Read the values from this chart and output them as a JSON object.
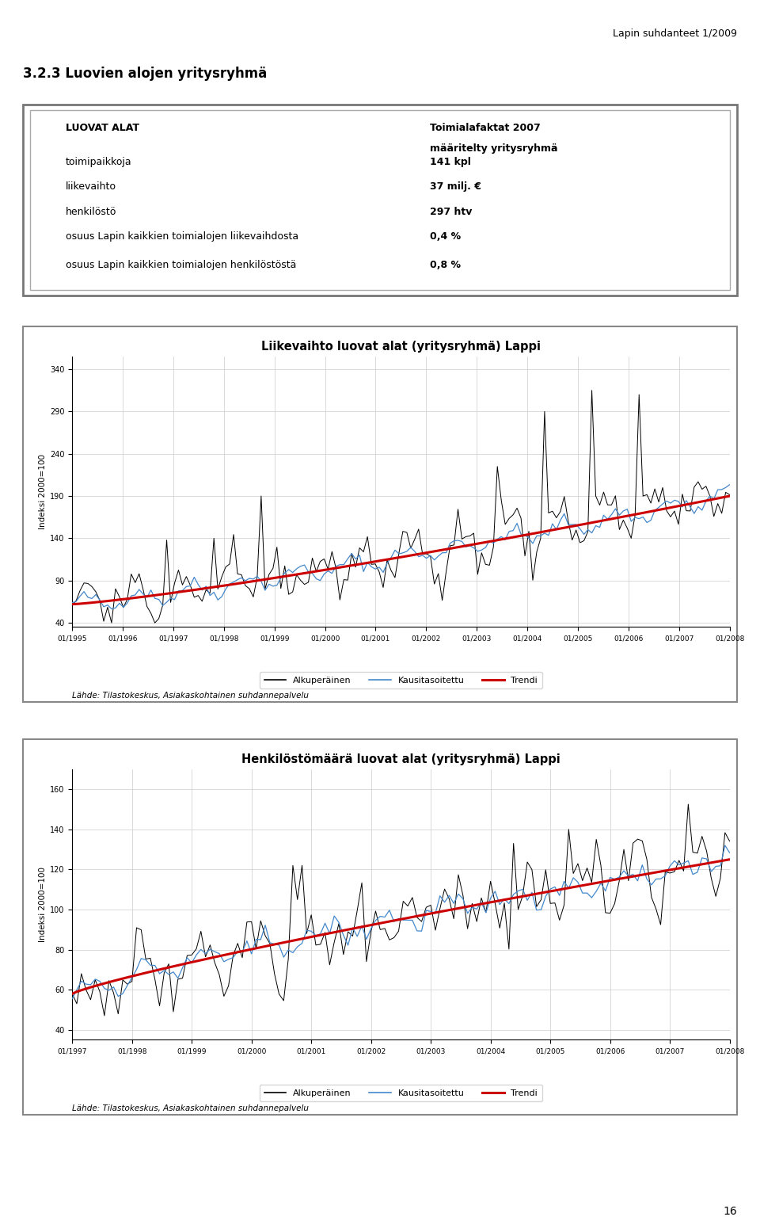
{
  "page_header": "Lapin suhdanteet 1/2009",
  "section_title": "3.2.3 Luovien alojen yritysryhmä",
  "info_left": [
    [
      "LUOVAT ALAT",
      true
    ],
    [
      "toimipaikkoja",
      false
    ],
    [
      "liikevaihto",
      false
    ],
    [
      "henkilöstö",
      false
    ],
    [
      "osuus Lapin kaikkien toimialojen liikevaihdosta",
      false
    ],
    [
      "osuus Lapin kaikkien toimialojen henkilöstöstä",
      false
    ]
  ],
  "info_right_header": [
    "Toimialafaktat 2007",
    "määritelty yritysryhmä"
  ],
  "info_right_values": [
    [
      "141 kpl",
      false
    ],
    [
      "37 milj. €",
      false
    ],
    [
      "297 htv",
      false
    ],
    [
      "0,4 %",
      false
    ],
    [
      "0,8 %",
      false
    ]
  ],
  "chart1_title": "Liikevaihto luovat alat (yritysryhmä) Lappi",
  "chart1_ylabel": "Indeksi 2000=100",
  "chart1_yticks": [
    40,
    90,
    140,
    190,
    240,
    290,
    340
  ],
  "chart1_ylim": [
    35,
    355
  ],
  "chart1_xlabels": [
    "01/1995",
    "01/1996",
    "01/1997",
    "01/1998",
    "01/1999",
    "01/2000",
    "01/2001",
    "01/2002",
    "01/2003",
    "01/2004",
    "01/2005",
    "01/2006",
    "01/2007",
    "01/2008"
  ],
  "chart1_source": "Lähde: Tilastokeskus, Asiakaskohtainen suhdannepalvelu",
  "chart2_title": "Henkilöstömäärä luovat alat (yritysryhmä) Lappi",
  "chart2_ylabel": "Indeksi 2000=100",
  "chart2_yticks": [
    40,
    60,
    80,
    100,
    120,
    140,
    160
  ],
  "chart2_ylim": [
    35,
    170
  ],
  "chart2_xlabels": [
    "01/1997",
    "01/1998",
    "01/1999",
    "01/2000",
    "01/2001",
    "01/2002",
    "01/2003",
    "01/2004",
    "01/2005",
    "01/2006",
    "01/2007",
    "01/2008"
  ],
  "chart2_source": "Lähde: Tilastokeskus, Asiakaskohtainen suhdannepalvelu",
  "legend_labels": [
    "Alkuperäinen",
    "Kausitasoitettu",
    "Trendi"
  ],
  "page_number": "16",
  "color_orig": "black",
  "color_kausit": "#4488cc",
  "color_trendi": "#cc0000"
}
